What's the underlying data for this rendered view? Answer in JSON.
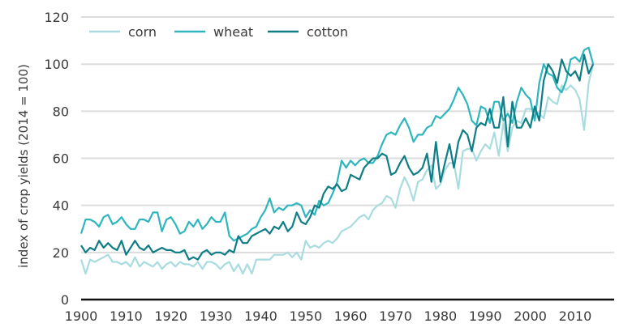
{
  "chart_data": {
    "type": "line",
    "title": "",
    "xlabel": "",
    "ylabel": "index of crop yields (2014 = 100)",
    "xlim": [
      1900,
      2014
    ],
    "ylim": [
      0,
      120
    ],
    "x_ticks": [
      1900,
      1910,
      1920,
      1930,
      1940,
      1950,
      1960,
      1970,
      1980,
      1990,
      2000,
      2010
    ],
    "y_ticks": [
      0,
      20,
      40,
      60,
      80,
      100,
      120
    ],
    "grid": true,
    "legend_position": "top-left",
    "x_start": 1900,
    "series": [
      {
        "name": "corn",
        "color": "#a9dcdf",
        "values": [
          17,
          11,
          17,
          16,
          17,
          18,
          19,
          16,
          16,
          15,
          16,
          14,
          18,
          14,
          16,
          15,
          14,
          16,
          13,
          15,
          16,
          14,
          16,
          15,
          15,
          14,
          16,
          13,
          16,
          16,
          15,
          13,
          15,
          16,
          12,
          15,
          11,
          15,
          11,
          17,
          17,
          17,
          17,
          19,
          19,
          19,
          20,
          18,
          20,
          17,
          25,
          22,
          23,
          22,
          24,
          25,
          24,
          26,
          29,
          30,
          31,
          33,
          35,
          36,
          34,
          38,
          40,
          41,
          44,
          43,
          39,
          47,
          52,
          48,
          42,
          50,
          51,
          55,
          57,
          47,
          49,
          55,
          58,
          58,
          47,
          63,
          64,
          64,
          59,
          63,
          66,
          64,
          71,
          61,
          75,
          63,
          73,
          76,
          75,
          81,
          81,
          80,
          79,
          77,
          86,
          84,
          83,
          91,
          89,
          91,
          89,
          85,
          72,
          92,
          100
        ]
      },
      {
        "name": "wheat",
        "color": "#2db6bd",
        "values": [
          28,
          34,
          34,
          33,
          31,
          35,
          36,
          32,
          33,
          35,
          32,
          30,
          30,
          34,
          34,
          33,
          37,
          37,
          29,
          34,
          35,
          32,
          28,
          29,
          33,
          31,
          34,
          30,
          32,
          35,
          33,
          33,
          37,
          27,
          25,
          26,
          27,
          28,
          30,
          31,
          35,
          38,
          43,
          37,
          39,
          38,
          40,
          40,
          41,
          40,
          35,
          38,
          36,
          42,
          40,
          41,
          45,
          50,
          59,
          56,
          59,
          57,
          59,
          60,
          58,
          58,
          61,
          66,
          70,
          71,
          70,
          74,
          77,
          73,
          67,
          70,
          70,
          73,
          74,
          78,
          77,
          79,
          81,
          85,
          90,
          87,
          83,
          76,
          74,
          82,
          81,
          75,
          84,
          84,
          76,
          79,
          75,
          84,
          90,
          87,
          85,
          76,
          92,
          100,
          96,
          95,
          90,
          88,
          93,
          102,
          103,
          101,
          106,
          107,
          100
        ]
      },
      {
        "name": "cotton",
        "color": "#0e7d85",
        "values": [
          23,
          20,
          22,
          21,
          25,
          22,
          24,
          22,
          21,
          25,
          19,
          22,
          25,
          22,
          21,
          23,
          20,
          21,
          22,
          21,
          21,
          20,
          20,
          21,
          17,
          18,
          17,
          20,
          21,
          19,
          20,
          20,
          19,
          21,
          20,
          27,
          24,
          24,
          27,
          28,
          29,
          30,
          28,
          31,
          30,
          33,
          29,
          31,
          37,
          33,
          32,
          35,
          40,
          39,
          45,
          48,
          47,
          49,
          46,
          47,
          53,
          52,
          51,
          56,
          58,
          60,
          60,
          62,
          61,
          53,
          54,
          58,
          61,
          56,
          53,
          54,
          56,
          62,
          50,
          67,
          50,
          58,
          66,
          56,
          67,
          72,
          70,
          63,
          73,
          75,
          74,
          81,
          73,
          73,
          86,
          65,
          84,
          73,
          73,
          77,
          73,
          82,
          76,
          93,
          100,
          97,
          92,
          102,
          97,
          95,
          97,
          93,
          104,
          96,
          100
        ]
      }
    ]
  }
}
